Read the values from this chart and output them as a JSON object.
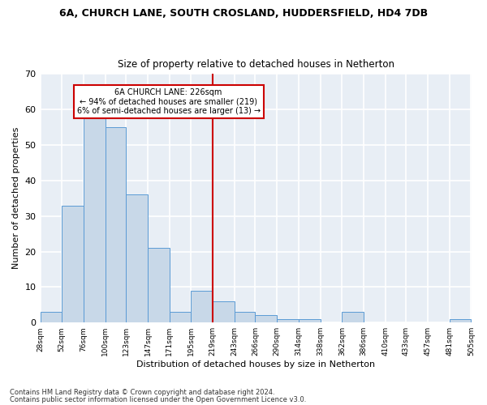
{
  "title": "6A, CHURCH LANE, SOUTH CROSLAND, HUDDERSFIELD, HD4 7DB",
  "subtitle": "Size of property relative to detached houses in Netherton",
  "xlabel": "Distribution of detached houses by size in Netherton",
  "ylabel": "Number of detached properties",
  "bar_color": "#c8d8e8",
  "bar_edge_color": "#5b9bd5",
  "background_color": "#e8eef5",
  "grid_color": "#ffffff",
  "bin_edges": [
    28,
    52,
    76,
    100,
    123,
    147,
    171,
    195,
    219,
    243,
    266,
    290,
    314,
    338,
    362,
    386,
    410,
    433,
    457,
    481,
    505
  ],
  "bin_labels": [
    "28sqm",
    "52sqm",
    "76sqm",
    "100sqm",
    "123sqm",
    "147sqm",
    "171sqm",
    "195sqm",
    "219sqm",
    "243sqm",
    "266sqm",
    "290sqm",
    "314sqm",
    "338sqm",
    "362sqm",
    "386sqm",
    "410sqm",
    "433sqm",
    "457sqm",
    "481sqm",
    "505sqm"
  ],
  "counts": [
    3,
    33,
    58,
    55,
    36,
    21,
    3,
    9,
    6,
    3,
    2,
    1,
    1,
    0,
    3,
    0,
    0,
    0,
    0,
    1
  ],
  "vline_x": 219,
  "vline_color": "#cc0000",
  "annotation_text": "6A CHURCH LANE: 226sqm\n← 94% of detached houses are smaller (219)\n6% of semi-detached houses are larger (13) →",
  "annotation_box_color": "#ffffff",
  "annotation_box_edge": "#cc0000",
  "ylim": [
    0,
    70
  ],
  "yticks": [
    0,
    10,
    20,
    30,
    40,
    50,
    60,
    70
  ],
  "footnote1": "Contains HM Land Registry data © Crown copyright and database right 2024.",
  "footnote2": "Contains public sector information licensed under the Open Government Licence v3.0."
}
